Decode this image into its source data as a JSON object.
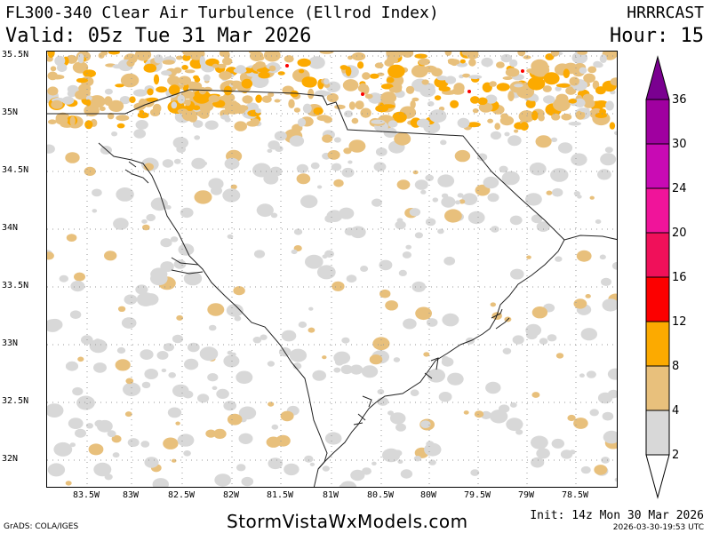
{
  "header": {
    "title": "FL300-340 Clear Air Turbulence (Ellrod Index)",
    "valid": "Valid: 05z Tue 31 Mar 2026",
    "model": "HRRRCAST",
    "hour": "Hour: 15"
  },
  "map": {
    "lat_labels": [
      "35.5N",
      "35N",
      "34.5N",
      "34N",
      "33.5N",
      "33N",
      "32.5N",
      "32N"
    ],
    "lon_labels": [
      "83.5W",
      "83W",
      "82.5W",
      "82W",
      "81.5W",
      "81W",
      "80.5W",
      "80W",
      "79.5W",
      "79W",
      "78.5W"
    ],
    "region": "South Carolina"
  },
  "colorbar": {
    "labels": [
      "2",
      "4",
      "8",
      "12",
      "16",
      "20",
      "24",
      "30",
      "36"
    ],
    "colors": [
      "#d8d8d8",
      "#e8c07c",
      "#fcaa00",
      "#fc0000",
      "#f0105a",
      "#f0149a",
      "#c80ab4",
      "#a000a0",
      "#7a0090"
    ]
  },
  "footer": {
    "brand": "StormVistaWxModels.com",
    "credit": "GrADS: COLA/IGES",
    "init": "Init: 14z Mon 30 Mar 2026",
    "timestamp": "2026-03-30-19:53 UTC"
  }
}
